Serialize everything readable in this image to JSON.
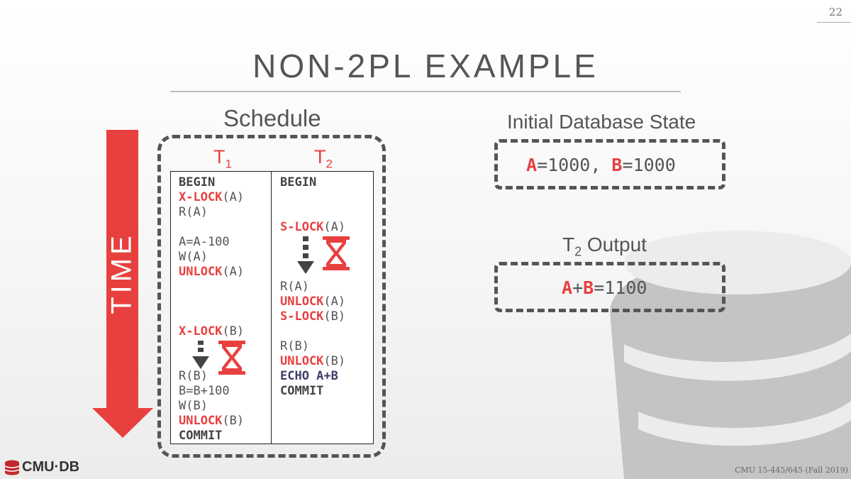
{
  "page_number": "22",
  "title": "NON-2PL EXAMPLE",
  "schedule_label": "Schedule",
  "time_label": "TIME",
  "t1_header": {
    "letter": "T",
    "sub": "1"
  },
  "t2_header": {
    "letter": "T",
    "sub": "2"
  },
  "t1": {
    "begin": "BEGIN",
    "xlock_a": "X-LOCK",
    "arg_a1": "(A)",
    "read_a": "R(A)",
    "compute_a": "A=A-100",
    "write_a": "W(A)",
    "unlock_a": "UNLOCK",
    "arg_a2": "(A)",
    "xlock_b": "X-LOCK",
    "arg_b1": "(B)",
    "read_b": "R(B)",
    "compute_b": "B=B+100",
    "write_b": "W(B)",
    "unlock_b": "UNLOCK",
    "arg_b2": "(B)",
    "commit": "COMMIT"
  },
  "t2": {
    "begin": "BEGIN",
    "slock_a": "S-LOCK",
    "arg_a1": "(A)",
    "read_a": "R(A)",
    "unlock_a": "UNLOCK",
    "arg_a2": "(A)",
    "slock_b": "S-LOCK",
    "arg_b1": "(B)",
    "read_b": "R(B)",
    "unlock_b": "UNLOCK",
    "arg_b2": "(B)",
    "echo": "ECHO A+B",
    "commit": "COMMIT"
  },
  "initial_state": {
    "label": "Initial Database State",
    "a_name": "A",
    "a_value": "=1000, ",
    "b_name": "B",
    "b_value": "=1000"
  },
  "output": {
    "label_letter": "T",
    "label_sub": "2",
    "label_rest": " Output",
    "a_name": "A",
    "plus": "+",
    "b_name": "B",
    "result": "=1100"
  },
  "logo_text": "CMU·DB",
  "footer": "CMU 15-445/645 (Fall 2019)",
  "colors": {
    "accent": "#e8403f",
    "text": "#555555",
    "echo": "#3d3d6b"
  }
}
